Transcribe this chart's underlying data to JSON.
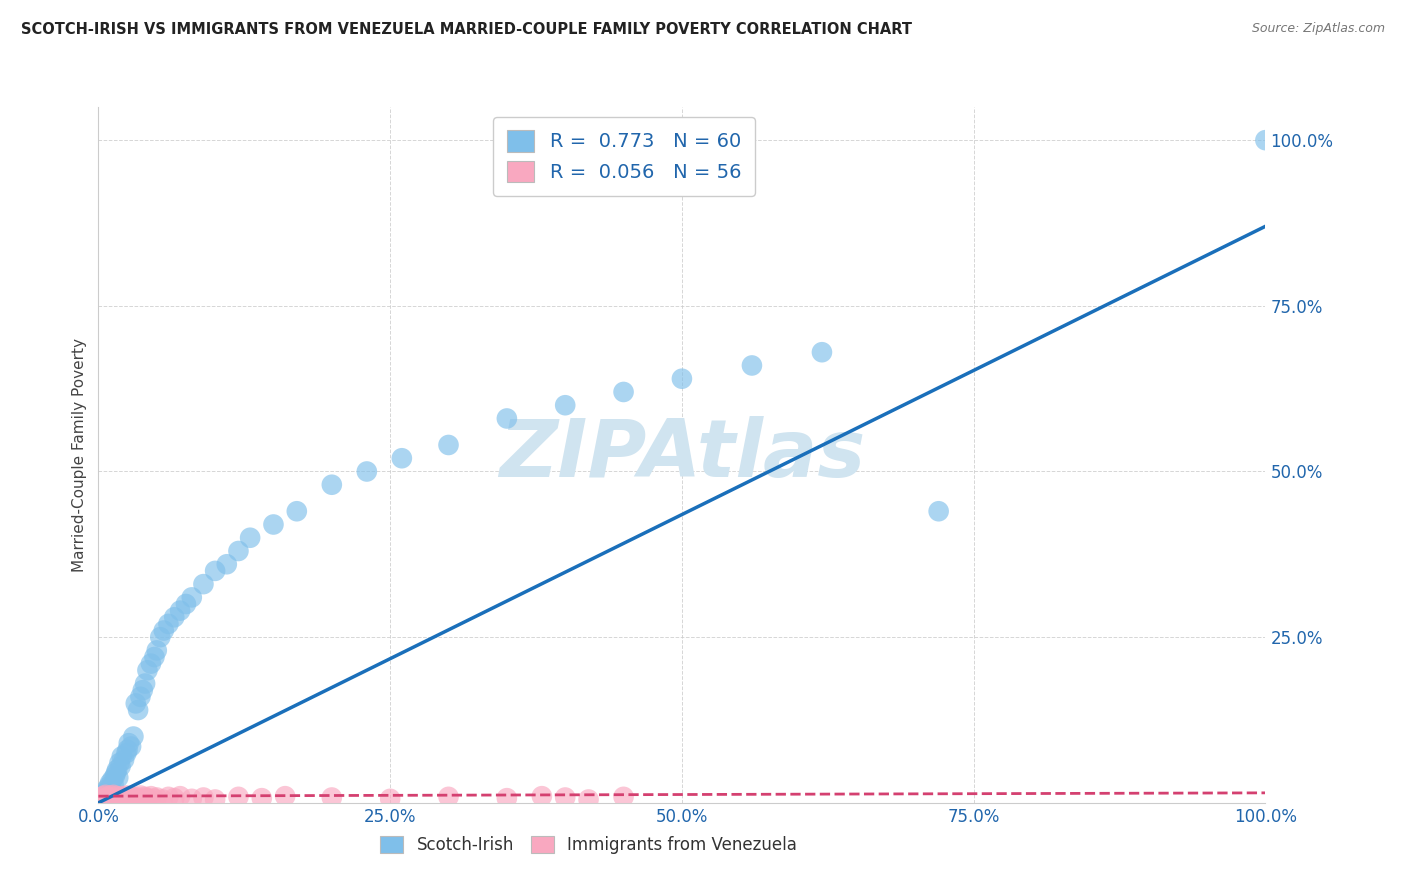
{
  "title": "SCOTCH-IRISH VS IMMIGRANTS FROM VENEZUELA MARRIED-COUPLE FAMILY POVERTY CORRELATION CHART",
  "source": "Source: ZipAtlas.com",
  "ylabel": "Married-Couple Family Poverty",
  "blue_R": 0.773,
  "blue_N": 60,
  "pink_R": 0.056,
  "pink_N": 56,
  "blue_color": "#7fbfea",
  "pink_color": "#f9a8c0",
  "blue_line_color": "#1a6fba",
  "pink_line_color": "#d44070",
  "watermark": "ZIPAtlas",
  "watermark_color": "#d0e4f0",
  "blue_scatter_x": [
    0.002,
    0.003,
    0.004,
    0.005,
    0.006,
    0.007,
    0.008,
    0.009,
    0.01,
    0.011,
    0.012,
    0.013,
    0.014,
    0.015,
    0.016,
    0.017,
    0.018,
    0.019,
    0.02,
    0.022,
    0.024,
    0.025,
    0.026,
    0.028,
    0.03,
    0.032,
    0.034,
    0.036,
    0.038,
    0.04,
    0.042,
    0.045,
    0.048,
    0.05,
    0.053,
    0.056,
    0.06,
    0.065,
    0.07,
    0.075,
    0.08,
    0.09,
    0.1,
    0.11,
    0.12,
    0.13,
    0.15,
    0.17,
    0.2,
    0.23,
    0.26,
    0.3,
    0.35,
    0.4,
    0.45,
    0.5,
    0.56,
    0.62,
    0.72,
    1.0
  ],
  "blue_scatter_y": [
    0.01,
    0.005,
    0.012,
    0.008,
    0.015,
    0.02,
    0.018,
    0.025,
    0.03,
    0.022,
    0.035,
    0.028,
    0.04,
    0.045,
    0.05,
    0.038,
    0.06,
    0.055,
    0.07,
    0.065,
    0.075,
    0.08,
    0.09,
    0.085,
    0.1,
    0.15,
    0.14,
    0.16,
    0.17,
    0.18,
    0.2,
    0.21,
    0.22,
    0.23,
    0.25,
    0.26,
    0.27,
    0.28,
    0.29,
    0.3,
    0.31,
    0.33,
    0.35,
    0.36,
    0.38,
    0.4,
    0.42,
    0.44,
    0.48,
    0.5,
    0.52,
    0.54,
    0.58,
    0.6,
    0.62,
    0.64,
    0.66,
    0.68,
    0.44,
    1.0
  ],
  "pink_scatter_x": [
    0.001,
    0.002,
    0.003,
    0.004,
    0.005,
    0.006,
    0.007,
    0.008,
    0.009,
    0.01,
    0.011,
    0.012,
    0.013,
    0.014,
    0.015,
    0.016,
    0.017,
    0.018,
    0.019,
    0.02,
    0.021,
    0.022,
    0.023,
    0.024,
    0.025,
    0.026,
    0.027,
    0.028,
    0.03,
    0.032,
    0.034,
    0.036,
    0.038,
    0.04,
    0.042,
    0.045,
    0.048,
    0.05,
    0.055,
    0.06,
    0.065,
    0.07,
    0.08,
    0.09,
    0.1,
    0.12,
    0.14,
    0.16,
    0.2,
    0.25,
    0.3,
    0.35,
    0.38,
    0.4,
    0.42,
    0.45
  ],
  "pink_scatter_y": [
    0.005,
    0.008,
    0.003,
    0.01,
    0.006,
    0.012,
    0.004,
    0.009,
    0.007,
    0.011,
    0.005,
    0.008,
    0.012,
    0.006,
    0.01,
    0.004,
    0.008,
    0.006,
    0.01,
    0.007,
    0.005,
    0.009,
    0.006,
    0.011,
    0.008,
    0.005,
    0.01,
    0.007,
    0.009,
    0.006,
    0.008,
    0.011,
    0.005,
    0.009,
    0.007,
    0.01,
    0.006,
    0.008,
    0.005,
    0.009,
    0.007,
    0.01,
    0.006,
    0.008,
    0.005,
    0.009,
    0.007,
    0.01,
    0.008,
    0.006,
    0.009,
    0.007,
    0.01,
    0.008,
    0.005,
    0.009
  ],
  "xlim": [
    0.0,
    1.0
  ],
  "ylim": [
    0.0,
    1.05
  ],
  "xticks": [
    0.0,
    0.25,
    0.5,
    0.75,
    1.0
  ],
  "xtick_labels": [
    "0.0%",
    "25.0%",
    "50.0%",
    "75.0%",
    "100.0%"
  ],
  "ytick_positions": [
    0.25,
    0.5,
    0.75,
    1.0
  ],
  "ytick_labels": [
    "25.0%",
    "50.0%",
    "75.0%",
    "100.0%"
  ],
  "blue_line_x": [
    0.0,
    1.0
  ],
  "blue_line_y": [
    0.0,
    0.87
  ],
  "pink_line_x": [
    0.0,
    1.0
  ],
  "pink_line_y": [
    0.01,
    0.015
  ]
}
